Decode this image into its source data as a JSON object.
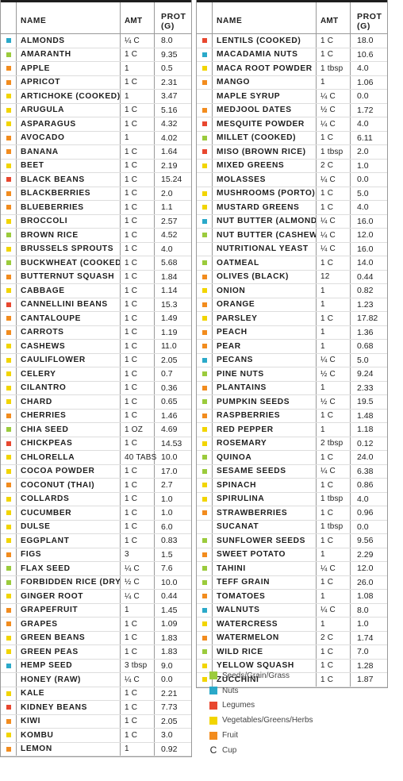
{
  "columns": {
    "name": "NAME",
    "amount": "AMT",
    "protein": "PROT\n(G)"
  },
  "colors": {
    "seeds": "#9bcb3c",
    "nuts": "#2aa9c9",
    "legumes": "#e8472f",
    "veg": "#f2d500",
    "fruit": "#f28c1e"
  },
  "left_rows": [
    {
      "cat": "nuts",
      "name": "ALMONDS",
      "amt": "¼ C",
      "prot": "8.0"
    },
    {
      "cat": "seeds",
      "name": "AMARANTH",
      "amt": "1 C",
      "prot": "9.35"
    },
    {
      "cat": "fruit",
      "name": "APPLE",
      "amt": "1",
      "prot": "0.5"
    },
    {
      "cat": "fruit",
      "name": "APRICOT",
      "amt": "1 C",
      "prot": "2.31"
    },
    {
      "cat": "veg",
      "name": "ARTICHOKE (COOKED)",
      "amt": "1",
      "prot": "3.47"
    },
    {
      "cat": "veg",
      "name": "ARUGULA",
      "amt": "1 C",
      "prot": "5.16"
    },
    {
      "cat": "veg",
      "name": "ASPARAGUS",
      "amt": "1 C",
      "prot": "4.32"
    },
    {
      "cat": "fruit",
      "name": "AVOCADO",
      "amt": "1",
      "prot": "4.02"
    },
    {
      "cat": "fruit",
      "name": "BANANA",
      "amt": "1 C",
      "prot": "1.64"
    },
    {
      "cat": "veg",
      "name": "BEET",
      "amt": "1 C",
      "prot": "2.19"
    },
    {
      "cat": "legumes",
      "name": "BLACK BEANS",
      "amt": "1 C",
      "prot": "15.24"
    },
    {
      "cat": "fruit",
      "name": "BLACKBERRIES",
      "amt": "1 C",
      "prot": "2.0"
    },
    {
      "cat": "fruit",
      "name": "BLUEBERRIES",
      "amt": "1 C",
      "prot": "1.1"
    },
    {
      "cat": "veg",
      "name": "BROCCOLI",
      "amt": "1 C",
      "prot": "2.57"
    },
    {
      "cat": "seeds",
      "name": "BROWN RICE",
      "amt": "1 C",
      "prot": "4.52"
    },
    {
      "cat": "veg",
      "name": "BRUSSELS SPROUTS",
      "amt": "1 C",
      "prot": "4.0"
    },
    {
      "cat": "seeds",
      "name": "BUCKWHEAT (COOKED)",
      "amt": "1 C",
      "prot": "5.68"
    },
    {
      "cat": "fruit",
      "name": "BUTTERNUT SQUASH",
      "amt": "1 C",
      "prot": "1.84"
    },
    {
      "cat": "veg",
      "name": "CABBAGE",
      "amt": "1 C",
      "prot": "1.14"
    },
    {
      "cat": "legumes",
      "name": "CANNELLINI BEANS",
      "amt": "1 C",
      "prot": "15.3"
    },
    {
      "cat": "fruit",
      "name": "CANTALOUPE",
      "amt": "1 C",
      "prot": "1.49"
    },
    {
      "cat": "fruit",
      "name": "CARROTS",
      "amt": "1 C",
      "prot": "1.19"
    },
    {
      "cat": "veg",
      "name": "CASHEWS",
      "amt": "1 C",
      "prot": "11.0"
    },
    {
      "cat": "veg",
      "name": "CAULIFLOWER",
      "amt": "1 C",
      "prot": "2.05"
    },
    {
      "cat": "veg",
      "name": "CELERY",
      "amt": "1 C",
      "prot": "0.7"
    },
    {
      "cat": "veg",
      "name": "CILANTRO",
      "amt": "1 C",
      "prot": "0.36"
    },
    {
      "cat": "veg",
      "name": "CHARD",
      "amt": "1 C",
      "prot": "0.65"
    },
    {
      "cat": "fruit",
      "name": "CHERRIES",
      "amt": "1 C",
      "prot": "1.46"
    },
    {
      "cat": "seeds",
      "name": "CHIA SEED",
      "amt": "1 OZ",
      "prot": "4.69"
    },
    {
      "cat": "legumes",
      "name": "CHICKPEAS",
      "amt": "1 C",
      "prot": "14.53"
    },
    {
      "cat": "veg",
      "name": "CHLORELLA",
      "amt": "40 TABS",
      "prot": "10.0"
    },
    {
      "cat": "veg",
      "name": "COCOA POWDER",
      "amt": "1 C",
      "prot": "17.0"
    },
    {
      "cat": "fruit",
      "name": "COCONUT (THAI)",
      "amt": "1 C",
      "prot": "2.7"
    },
    {
      "cat": "veg",
      "name": "COLLARDS",
      "amt": "1 C",
      "prot": "1.0"
    },
    {
      "cat": "veg",
      "name": "CUCUMBER",
      "amt": "1 C",
      "prot": "1.0"
    },
    {
      "cat": "veg",
      "name": "DULSE",
      "amt": "1 C",
      "prot": "6.0"
    },
    {
      "cat": "veg",
      "name": "EGGPLANT",
      "amt": "1 C",
      "prot": "0.83"
    },
    {
      "cat": "fruit",
      "name": "FIGS",
      "amt": "3",
      "prot": "1.5"
    },
    {
      "cat": "seeds",
      "name": "FLAX SEED",
      "amt": "¼ C",
      "prot": "7.6"
    },
    {
      "cat": "seeds",
      "name": "FORBIDDEN RICE (DRY)",
      "amt": "½ C",
      "prot": "10.0"
    },
    {
      "cat": "veg",
      "name": "GINGER ROOT",
      "amt": "¼ C",
      "prot": "0.44"
    },
    {
      "cat": "fruit",
      "name": "GRAPEFRUIT",
      "amt": "1",
      "prot": "1.45"
    },
    {
      "cat": "fruit",
      "name": "GRAPES",
      "amt": "1 C",
      "prot": "1.09"
    },
    {
      "cat": "veg",
      "name": "GREEN BEANS",
      "amt": "1 C",
      "prot": "1.83"
    },
    {
      "cat": "veg",
      "name": "GREEN PEAS",
      "amt": "1 C",
      "prot": "1.83"
    },
    {
      "cat": "nuts",
      "name": "HEMP SEED",
      "amt": "3 tbsp",
      "prot": "9.0"
    },
    {
      "cat": "none",
      "name": "HONEY (RAW)",
      "amt": "¼ C",
      "prot": "0.0"
    },
    {
      "cat": "veg",
      "name": "KALE",
      "amt": "1 C",
      "prot": "2.21"
    },
    {
      "cat": "legumes",
      "name": "KIDNEY BEANS",
      "amt": "1 C",
      "prot": "7.73"
    },
    {
      "cat": "fruit",
      "name": "KIWI",
      "amt": "1 C",
      "prot": "2.05"
    },
    {
      "cat": "veg",
      "name": "KOMBU",
      "amt": "1 C",
      "prot": "3.0"
    },
    {
      "cat": "fruit",
      "name": "LEMON",
      "amt": "1",
      "prot": "0.92"
    }
  ],
  "right_rows": [
    {
      "cat": "legumes",
      "name": "LENTILS (COOKED)",
      "amt": "1 C",
      "prot": "18.0"
    },
    {
      "cat": "nuts",
      "name": "MACADAMIA NUTS",
      "amt": "1 C",
      "prot": "10.6"
    },
    {
      "cat": "veg",
      "name": "MACA ROOT POWDER",
      "amt": "1 tbsp",
      "prot": "4.0"
    },
    {
      "cat": "fruit",
      "name": "MANGO",
      "amt": "1",
      "prot": "1.06"
    },
    {
      "cat": "none",
      "name": "MAPLE SYRUP",
      "amt": "¼ C",
      "prot": "0.0"
    },
    {
      "cat": "fruit",
      "name": "MEDJOOL DATES",
      "amt": "½ C",
      "prot": "1.72"
    },
    {
      "cat": "legumes",
      "name": "MESQUITE POWDER",
      "amt": "¼ C",
      "prot": "4.0"
    },
    {
      "cat": "seeds",
      "name": "MILLET (COOKED)",
      "amt": "1 C",
      "prot": "6.11"
    },
    {
      "cat": "legumes",
      "name": "MISO (BROWN RICE)",
      "amt": "1 tbsp",
      "prot": "2.0"
    },
    {
      "cat": "veg",
      "name": "MIXED GREENS",
      "amt": "2 C",
      "prot": "1.0"
    },
    {
      "cat": "none",
      "name": "MOLASSES",
      "amt": "¼ C",
      "prot": "0.0"
    },
    {
      "cat": "veg",
      "name": "MUSHROOMS (PORTO)",
      "amt": "1 C",
      "prot": "5.0"
    },
    {
      "cat": "veg",
      "name": "MUSTARD GREENS",
      "amt": "1 C",
      "prot": "4.0"
    },
    {
      "cat": "nuts",
      "name": "NUT BUTTER (ALMOND)",
      "amt": "¼ C",
      "prot": "16.0"
    },
    {
      "cat": "seeds",
      "name": "NUT BUTTER (CASHEW)",
      "amt": "¼ C",
      "prot": "12.0"
    },
    {
      "cat": "none",
      "name": "NUTRITIONAL YEAST",
      "amt": "¼ C",
      "prot": "16.0"
    },
    {
      "cat": "seeds",
      "name": "OATMEAL",
      "amt": "1 C",
      "prot": "14.0"
    },
    {
      "cat": "fruit",
      "name": "OLIVES (BLACK)",
      "amt": "12",
      "prot": "0.44"
    },
    {
      "cat": "veg",
      "name": "ONION",
      "amt": "1",
      "prot": "0.82"
    },
    {
      "cat": "fruit",
      "name": "ORANGE",
      "amt": "1",
      "prot": "1.23"
    },
    {
      "cat": "veg",
      "name": "PARSLEY",
      "amt": "1 C",
      "prot": "17.82"
    },
    {
      "cat": "fruit",
      "name": "PEACH",
      "amt": "1",
      "prot": "1.36"
    },
    {
      "cat": "fruit",
      "name": "PEAR",
      "amt": "1",
      "prot": "0.68"
    },
    {
      "cat": "nuts",
      "name": "PECANS",
      "amt": "¼ C",
      "prot": "5.0"
    },
    {
      "cat": "seeds",
      "name": "PINE NUTS",
      "amt": "½ C",
      "prot": "9.24"
    },
    {
      "cat": "fruit",
      "name": "PLANTAINS",
      "amt": "1",
      "prot": "2.33"
    },
    {
      "cat": "seeds",
      "name": "PUMPKIN SEEDS",
      "amt": "½ C",
      "prot": "19.5"
    },
    {
      "cat": "fruit",
      "name": "RASPBERRIES",
      "amt": "1 C",
      "prot": "1.48"
    },
    {
      "cat": "veg",
      "name": "RED PEPPER",
      "amt": "1",
      "prot": "1.18"
    },
    {
      "cat": "veg",
      "name": "ROSEMARY",
      "amt": "2 tbsp",
      "prot": "0.12"
    },
    {
      "cat": "seeds",
      "name": "QUINOA",
      "amt": "1 C",
      "prot": "24.0"
    },
    {
      "cat": "seeds",
      "name": "SESAME SEEDS",
      "amt": "¼ C",
      "prot": "6.38"
    },
    {
      "cat": "veg",
      "name": "SPINACH",
      "amt": "1 C",
      "prot": "0.86"
    },
    {
      "cat": "veg",
      "name": "SPIRULINA",
      "amt": "1 tbsp",
      "prot": "4.0"
    },
    {
      "cat": "fruit",
      "name": "STRAWBERRIES",
      "amt": "1 C",
      "prot": "0.96"
    },
    {
      "cat": "none",
      "name": "SUCANAT",
      "amt": "1 tbsp",
      "prot": "0.0"
    },
    {
      "cat": "seeds",
      "name": "SUNFLOWER SEEDS",
      "amt": "1 C",
      "prot": "9.56"
    },
    {
      "cat": "fruit",
      "name": "SWEET POTATO",
      "amt": "1",
      "prot": "2.29"
    },
    {
      "cat": "seeds",
      "name": "TAHINI",
      "amt": "¼ C",
      "prot": "12.0"
    },
    {
      "cat": "seeds",
      "name": "TEFF GRAIN",
      "amt": "1 C",
      "prot": "26.0"
    },
    {
      "cat": "fruit",
      "name": "TOMATOES",
      "amt": "1",
      "prot": "1.08"
    },
    {
      "cat": "nuts",
      "name": "WALNUTS",
      "amt": "¼ C",
      "prot": "8.0"
    },
    {
      "cat": "veg",
      "name": "WATERCRESS",
      "amt": "1",
      "prot": "1.0"
    },
    {
      "cat": "fruit",
      "name": "WATERMELON",
      "amt": "2 C",
      "prot": "1.74"
    },
    {
      "cat": "seeds",
      "name": "WILD RICE",
      "amt": "1 C",
      "prot": "7.0"
    },
    {
      "cat": "veg",
      "name": "YELLOW SQUASH",
      "amt": "1 C",
      "prot": "1.28"
    },
    {
      "cat": "veg",
      "name": "ZUCCHINI",
      "amt": "1 C",
      "prot": "1.87"
    }
  ],
  "legend": [
    {
      "cat": "seeds",
      "label": "Seeds/Grain/Grass"
    },
    {
      "cat": "nuts",
      "label": "Nuts"
    },
    {
      "cat": "legumes",
      "label": "Legumes"
    },
    {
      "cat": "veg",
      "label": "Vegetables/Greens/Herbs"
    },
    {
      "cat": "fruit",
      "label": "Fruit"
    },
    {
      "cat": "cup",
      "symbol": "C",
      "label": "Cup"
    }
  ]
}
